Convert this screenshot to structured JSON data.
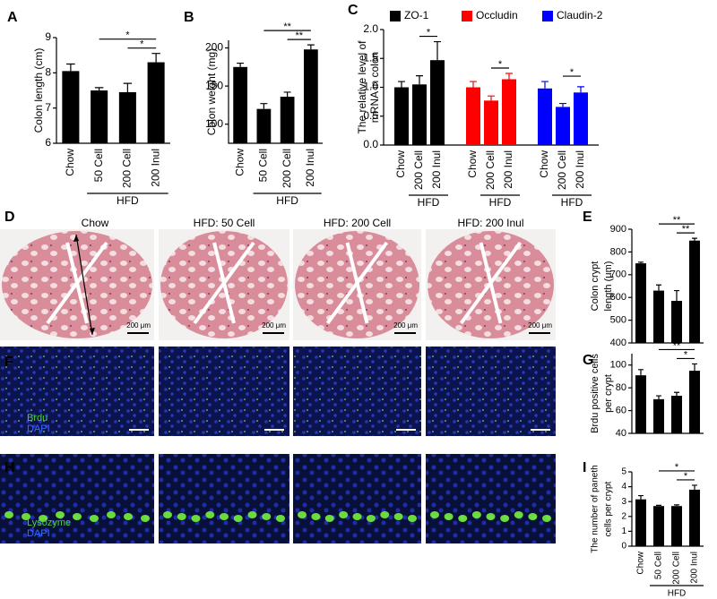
{
  "panel_letters": [
    "A",
    "B",
    "C",
    "D",
    "E",
    "F",
    "G",
    "H",
    "I"
  ],
  "chart_data": [
    {
      "type": "bar",
      "ylabel": "Colon length (cm)",
      "categories": [
        "Chow",
        "50 Cell",
        "200 Cell",
        "200 Inul"
      ],
      "group_label": "HFD",
      "values": [
        8.05,
        7.5,
        7.45,
        8.3
      ],
      "errors": [
        0.2,
        0.08,
        0.25,
        0.25
      ],
      "color": "#000000",
      "ylim": [
        6,
        9
      ],
      "yticks": [
        6,
        7,
        8,
        9
      ],
      "significance": [
        "*",
        "*"
      ]
    },
    {
      "type": "bar",
      "ylabel": "Colon weight (mg)",
      "categories": [
        "Chow",
        "50 Cell",
        "200 Cell",
        "200 Inul"
      ],
      "group_label": "HFD",
      "values": [
        175,
        120,
        136,
        198
      ],
      "errors": [
        5,
        7,
        6,
        6
      ],
      "color": "#000000",
      "ylim": [
        75,
        210
      ],
      "yticks": [
        100,
        150,
        200
      ],
      "significance": [
        "**",
        "**"
      ]
    },
    {
      "type": "bar",
      "ylabel": [
        "The relative level of",
        "mRNA in colon"
      ],
      "categories": [
        "Chow",
        "200 Cell",
        "200 Inul"
      ],
      "group_label": "HFD",
      "series": [
        {
          "name": "ZO-1",
          "color": "#000000",
          "values": [
            1.0,
            1.05,
            1.47
          ],
          "errors": [
            0.1,
            0.15,
            0.32
          ]
        },
        {
          "name": "Occludin",
          "color": "#ff0000",
          "values": [
            1.0,
            0.77,
            1.14
          ],
          "errors": [
            0.1,
            0.08,
            0.1
          ]
        },
        {
          "name": "Claudin-2",
          "color": "#0000ff",
          "values": [
            0.98,
            0.66,
            0.91
          ],
          "errors": [
            0.12,
            0.06,
            0.1
          ]
        }
      ],
      "ylim": [
        0,
        2
      ],
      "yticks": [
        {
          "value": 0,
          "label": "0.0"
        },
        0.5,
        {
          "value": 1,
          "label": "1.0"
        },
        1.5,
        {
          "value": 2,
          "label": "2.0"
        }
      ],
      "significance": [
        "*",
        "*",
        "*"
      ]
    },
    {
      "type": "bar",
      "ylabel": [
        "Colon crypt",
        "length (μm)"
      ],
      "values": [
        750,
        630,
        585,
        850
      ],
      "errors": [
        5,
        25,
        45,
        10
      ],
      "color": "#000000",
      "ylim": [
        400,
        900
      ],
      "yticks": [
        400,
        500,
        600,
        700,
        800,
        900
      ],
      "significance": [
        "**",
        "**"
      ]
    },
    {
      "type": "bar",
      "ylabel": [
        "Brdu positive cells",
        "per crypt"
      ],
      "values": [
        91,
        70,
        73,
        95
      ],
      "errors": [
        5,
        3,
        3,
        6
      ],
      "color": "#000000",
      "ylim": [
        40,
        110
      ],
      "yticks": [
        40,
        60,
        80,
        100
      ],
      "significance": [
        "**",
        "*"
      ]
    },
    {
      "type": "bar",
      "ylabel": [
        "The number of paneth",
        "cells per crypt"
      ],
      "categories": [
        "Chow",
        "50 Cell",
        "200 Cell",
        "200 Inul"
      ],
      "group_label": "HFD",
      "values": [
        3.15,
        2.7,
        2.7,
        3.8
      ],
      "errors": [
        0.25,
        0.05,
        0.08,
        0.3
      ],
      "color": "#000000",
      "ylim": [
        0,
        5
      ],
      "yticks": [
        0,
        1,
        2,
        3,
        4,
        5
      ],
      "significance": [
        "*",
        "*"
      ]
    }
  ],
  "micrographs": {
    "titles": [
      "Chow",
      "HFD: 50 Cell",
      "HFD: 200 Cell",
      "HFD: 200 Inul"
    ],
    "scale_label": "200 μm",
    "f_stain": [
      "Brdu",
      "DAPI"
    ],
    "h_stain": [
      "Lysozyme",
      "DAPI"
    ]
  }
}
